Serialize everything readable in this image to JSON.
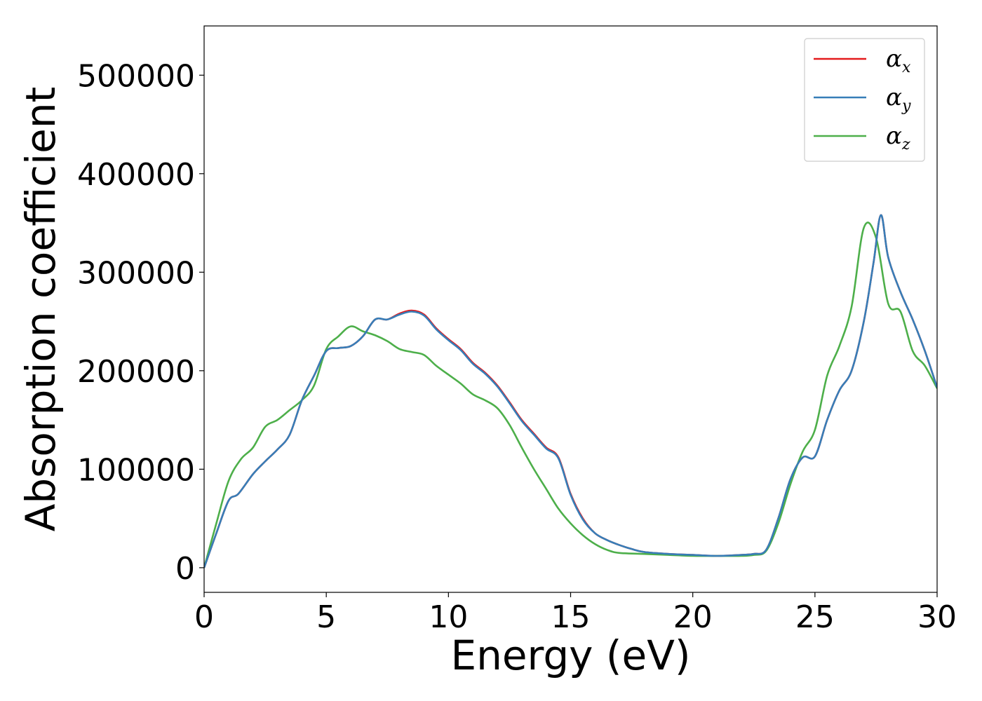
{
  "chart_data": {
    "type": "line",
    "xlabel": "Energy (eV)",
    "ylabel": "Absorption coefficient",
    "xlim": [
      0,
      30
    ],
    "ylim": [
      -25000,
      550000
    ],
    "xticks": [
      0,
      5,
      10,
      15,
      20,
      25,
      30
    ],
    "yticks": [
      0,
      100000,
      200000,
      300000,
      400000,
      500000
    ],
    "xtick_labels": [
      "0",
      "5",
      "10",
      "15",
      "20",
      "25",
      "30"
    ],
    "ytick_labels": [
      "0",
      "100000",
      "200000",
      "300000",
      "400000",
      "500000"
    ],
    "grid": false,
    "legend_position": "top-right",
    "series": [
      {
        "name": "α",
        "subscript": "x",
        "color": "#e41a1c",
        "x": [
          0,
          0.5,
          1.0,
          1.4,
          2.0,
          2.5,
          3.0,
          3.5,
          4.0,
          4.5,
          5.0,
          5.5,
          6.0,
          6.5,
          7.0,
          7.5,
          8.0,
          8.5,
          9.0,
          9.5,
          10.0,
          10.5,
          11.0,
          11.5,
          12.0,
          12.5,
          13.0,
          13.5,
          14.0,
          14.5,
          15.0,
          15.5,
          16.0,
          16.5,
          17.0,
          17.5,
          18.0,
          19.0,
          20.0,
          21.0,
          22.0,
          22.5,
          23.0,
          23.5,
          24.0,
          24.5,
          25.0,
          25.5,
          26.0,
          26.5,
          27.0,
          27.4,
          27.7,
          28.0,
          28.5,
          29.0,
          29.5,
          30.0
        ],
        "values": [
          0,
          35000,
          68000,
          75000,
          95000,
          108000,
          120000,
          135000,
          170000,
          195000,
          220000,
          223000,
          225000,
          235000,
          252000,
          252000,
          258000,
          261000,
          257000,
          243000,
          232000,
          222000,
          208000,
          198000,
          185000,
          168000,
          150000,
          136000,
          122000,
          112000,
          75000,
          50000,
          35000,
          28000,
          23000,
          19000,
          16000,
          14000,
          13000,
          12000,
          13000,
          14000,
          18000,
          50000,
          90000,
          112000,
          113000,
          150000,
          180000,
          200000,
          250000,
          310000,
          358000,
          315000,
          280000,
          252000,
          220000,
          183000
        ]
      },
      {
        "name": "α",
        "subscript": "y",
        "color": "#377eb8",
        "x": [
          0,
          0.5,
          1.0,
          1.4,
          2.0,
          2.5,
          3.0,
          3.5,
          4.0,
          4.5,
          5.0,
          5.5,
          6.0,
          6.5,
          7.0,
          7.5,
          8.0,
          8.5,
          9.0,
          9.5,
          10.0,
          10.5,
          11.0,
          11.5,
          12.0,
          12.5,
          13.0,
          13.5,
          14.0,
          14.5,
          15.0,
          15.5,
          16.0,
          16.5,
          17.0,
          17.5,
          18.0,
          19.0,
          20.0,
          21.0,
          22.0,
          22.5,
          23.0,
          23.5,
          24.0,
          24.5,
          25.0,
          25.5,
          26.0,
          26.5,
          27.0,
          27.4,
          27.7,
          28.0,
          28.5,
          29.0,
          29.5,
          30.0
        ],
        "values": [
          0,
          35000,
          68000,
          75000,
          95000,
          108000,
          120000,
          135000,
          170000,
          195000,
          220000,
          223000,
          225000,
          235000,
          252000,
          252000,
          257000,
          260000,
          256000,
          242000,
          231000,
          221000,
          207000,
          197000,
          184000,
          167000,
          149000,
          135000,
          121000,
          111000,
          74000,
          49000,
          35000,
          28000,
          23000,
          19000,
          16000,
          14000,
          13000,
          12000,
          13000,
          14000,
          18000,
          50000,
          90000,
          112000,
          113000,
          150000,
          180000,
          200000,
          250000,
          310000,
          358000,
          315000,
          280000,
          252000,
          220000,
          183000
        ]
      },
      {
        "name": "α",
        "subscript": "z",
        "color": "#4daf4a",
        "x": [
          0,
          0.5,
          1.0,
          1.5,
          2.0,
          2.5,
          3.0,
          3.5,
          4.0,
          4.5,
          5.0,
          5.5,
          6.0,
          6.5,
          7.0,
          7.5,
          8.0,
          8.5,
          9.0,
          9.5,
          10.0,
          10.5,
          11.0,
          11.5,
          12.0,
          12.5,
          13.0,
          13.5,
          14.0,
          14.5,
          15.0,
          15.5,
          16.0,
          16.5,
          17.0,
          18.0,
          19.0,
          20.0,
          21.0,
          22.0,
          22.5,
          23.0,
          23.5,
          24.0,
          24.5,
          25.0,
          25.5,
          26.0,
          26.5,
          27.0,
          27.5,
          28.0,
          28.5,
          29.0,
          29.5,
          30.0
        ],
        "values": [
          0,
          45000,
          88000,
          110000,
          122000,
          143000,
          150000,
          160000,
          170000,
          185000,
          222000,
          235000,
          245000,
          240000,
          236000,
          230000,
          222000,
          219000,
          216000,
          205000,
          196000,
          187000,
          176000,
          170000,
          162000,
          145000,
          122000,
          100000,
          80000,
          60000,
          45000,
          33000,
          24000,
          18000,
          15000,
          14000,
          13000,
          12000,
          12000,
          12000,
          13000,
          17000,
          45000,
          85000,
          118000,
          140000,
          195000,
          225000,
          265000,
          345000,
          335000,
          268000,
          260000,
          220000,
          205000,
          182000
        ]
      }
    ]
  }
}
